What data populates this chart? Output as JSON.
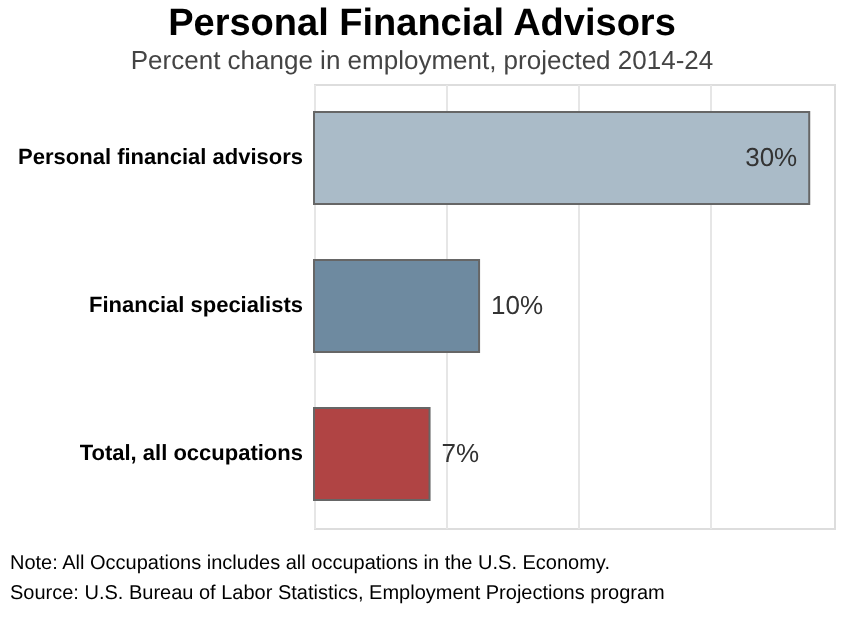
{
  "chart_data": {
    "type": "bar",
    "orientation": "horizontal",
    "title": "Personal Financial Advisors",
    "subtitle": "Percent change in employment, projected 2014-24",
    "categories": [
      "Personal financial advisors",
      "Financial specialists",
      "Total, all occupations"
    ],
    "values": [
      30,
      10,
      7
    ],
    "colors": [
      "#aabbc8",
      "#6e8aa0",
      "#b04444"
    ],
    "value_labels": [
      "30%",
      "10%",
      "7%"
    ],
    "xlim": [
      0,
      31.5
    ],
    "xticks": [
      {
        "value": 0,
        "label": null
      },
      {
        "value": 8,
        "label": null
      },
      {
        "value": 16,
        "label": null
      },
      {
        "value": 24,
        "label": null
      }
    ],
    "grid": "x",
    "tick_labels": "y",
    "annotations": [
      "Note: All Occupations includes all occupations in the U.S. Economy.",
      "Source: U.S. Bureau of Labor Statistics, Employment Projections program"
    ]
  }
}
